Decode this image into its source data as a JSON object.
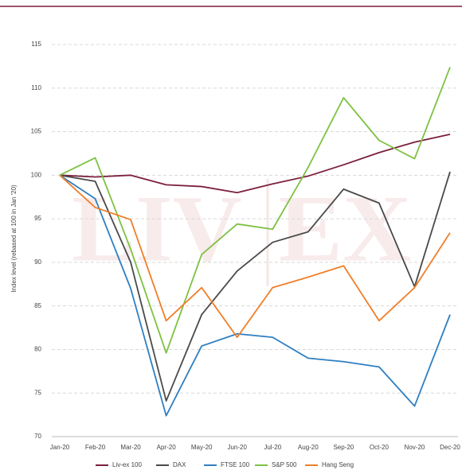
{
  "chart_data": {
    "type": "line",
    "y_label": "Index level (rebased at 100 in Jan '20)",
    "watermark": [
      "LIV",
      "EX"
    ],
    "categories": [
      "Jan-20",
      "Feb-20",
      "Mar-20",
      "Apr-20",
      "May-20",
      "Jun-20",
      "Jul-20",
      "Aug-20",
      "Sep-20",
      "Oct-20",
      "Nov-20",
      "Dec-20"
    ],
    "series": [
      {
        "name": "Liv-ex 100",
        "color": "#7b1f3a",
        "values": [
          100,
          99.8,
          100,
          98.9,
          98.7,
          98,
          99,
          99.9,
          101.2,
          102.6,
          103.8,
          104.7
        ]
      },
      {
        "name": "DAX",
        "color": "#4a4a4a",
        "values": [
          100,
          99.3,
          90,
          74.1,
          84,
          89,
          92.3,
          93.5,
          98.4,
          96.8,
          87.2,
          100.4
        ]
      },
      {
        "name": "FTSE 100",
        "color": "#2f7fc1",
        "values": [
          100,
          97.3,
          87,
          72.4,
          80.4,
          81.8,
          81.4,
          79,
          78.6,
          78,
          73.5,
          84
        ]
      },
      {
        "name": "S&P 500",
        "color": "#7dc242",
        "values": [
          100,
          102,
          91.5,
          79.6,
          90.9,
          94.4,
          93.8,
          100.9,
          108.9,
          104,
          101.9,
          112.4
        ]
      },
      {
        "name": "Hang Seng",
        "color": "#f07e2a",
        "values": [
          100,
          96.3,
          94.9,
          83.3,
          87.1,
          81.4,
          87.1,
          88.3,
          89.6,
          83.3,
          87.1,
          93.4
        ]
      }
    ],
    "ylim": [
      70,
      115
    ],
    "yticks": [
      70,
      75,
      80,
      85,
      90,
      95,
      100,
      105,
      110,
      115
    ],
    "grid": true
  }
}
